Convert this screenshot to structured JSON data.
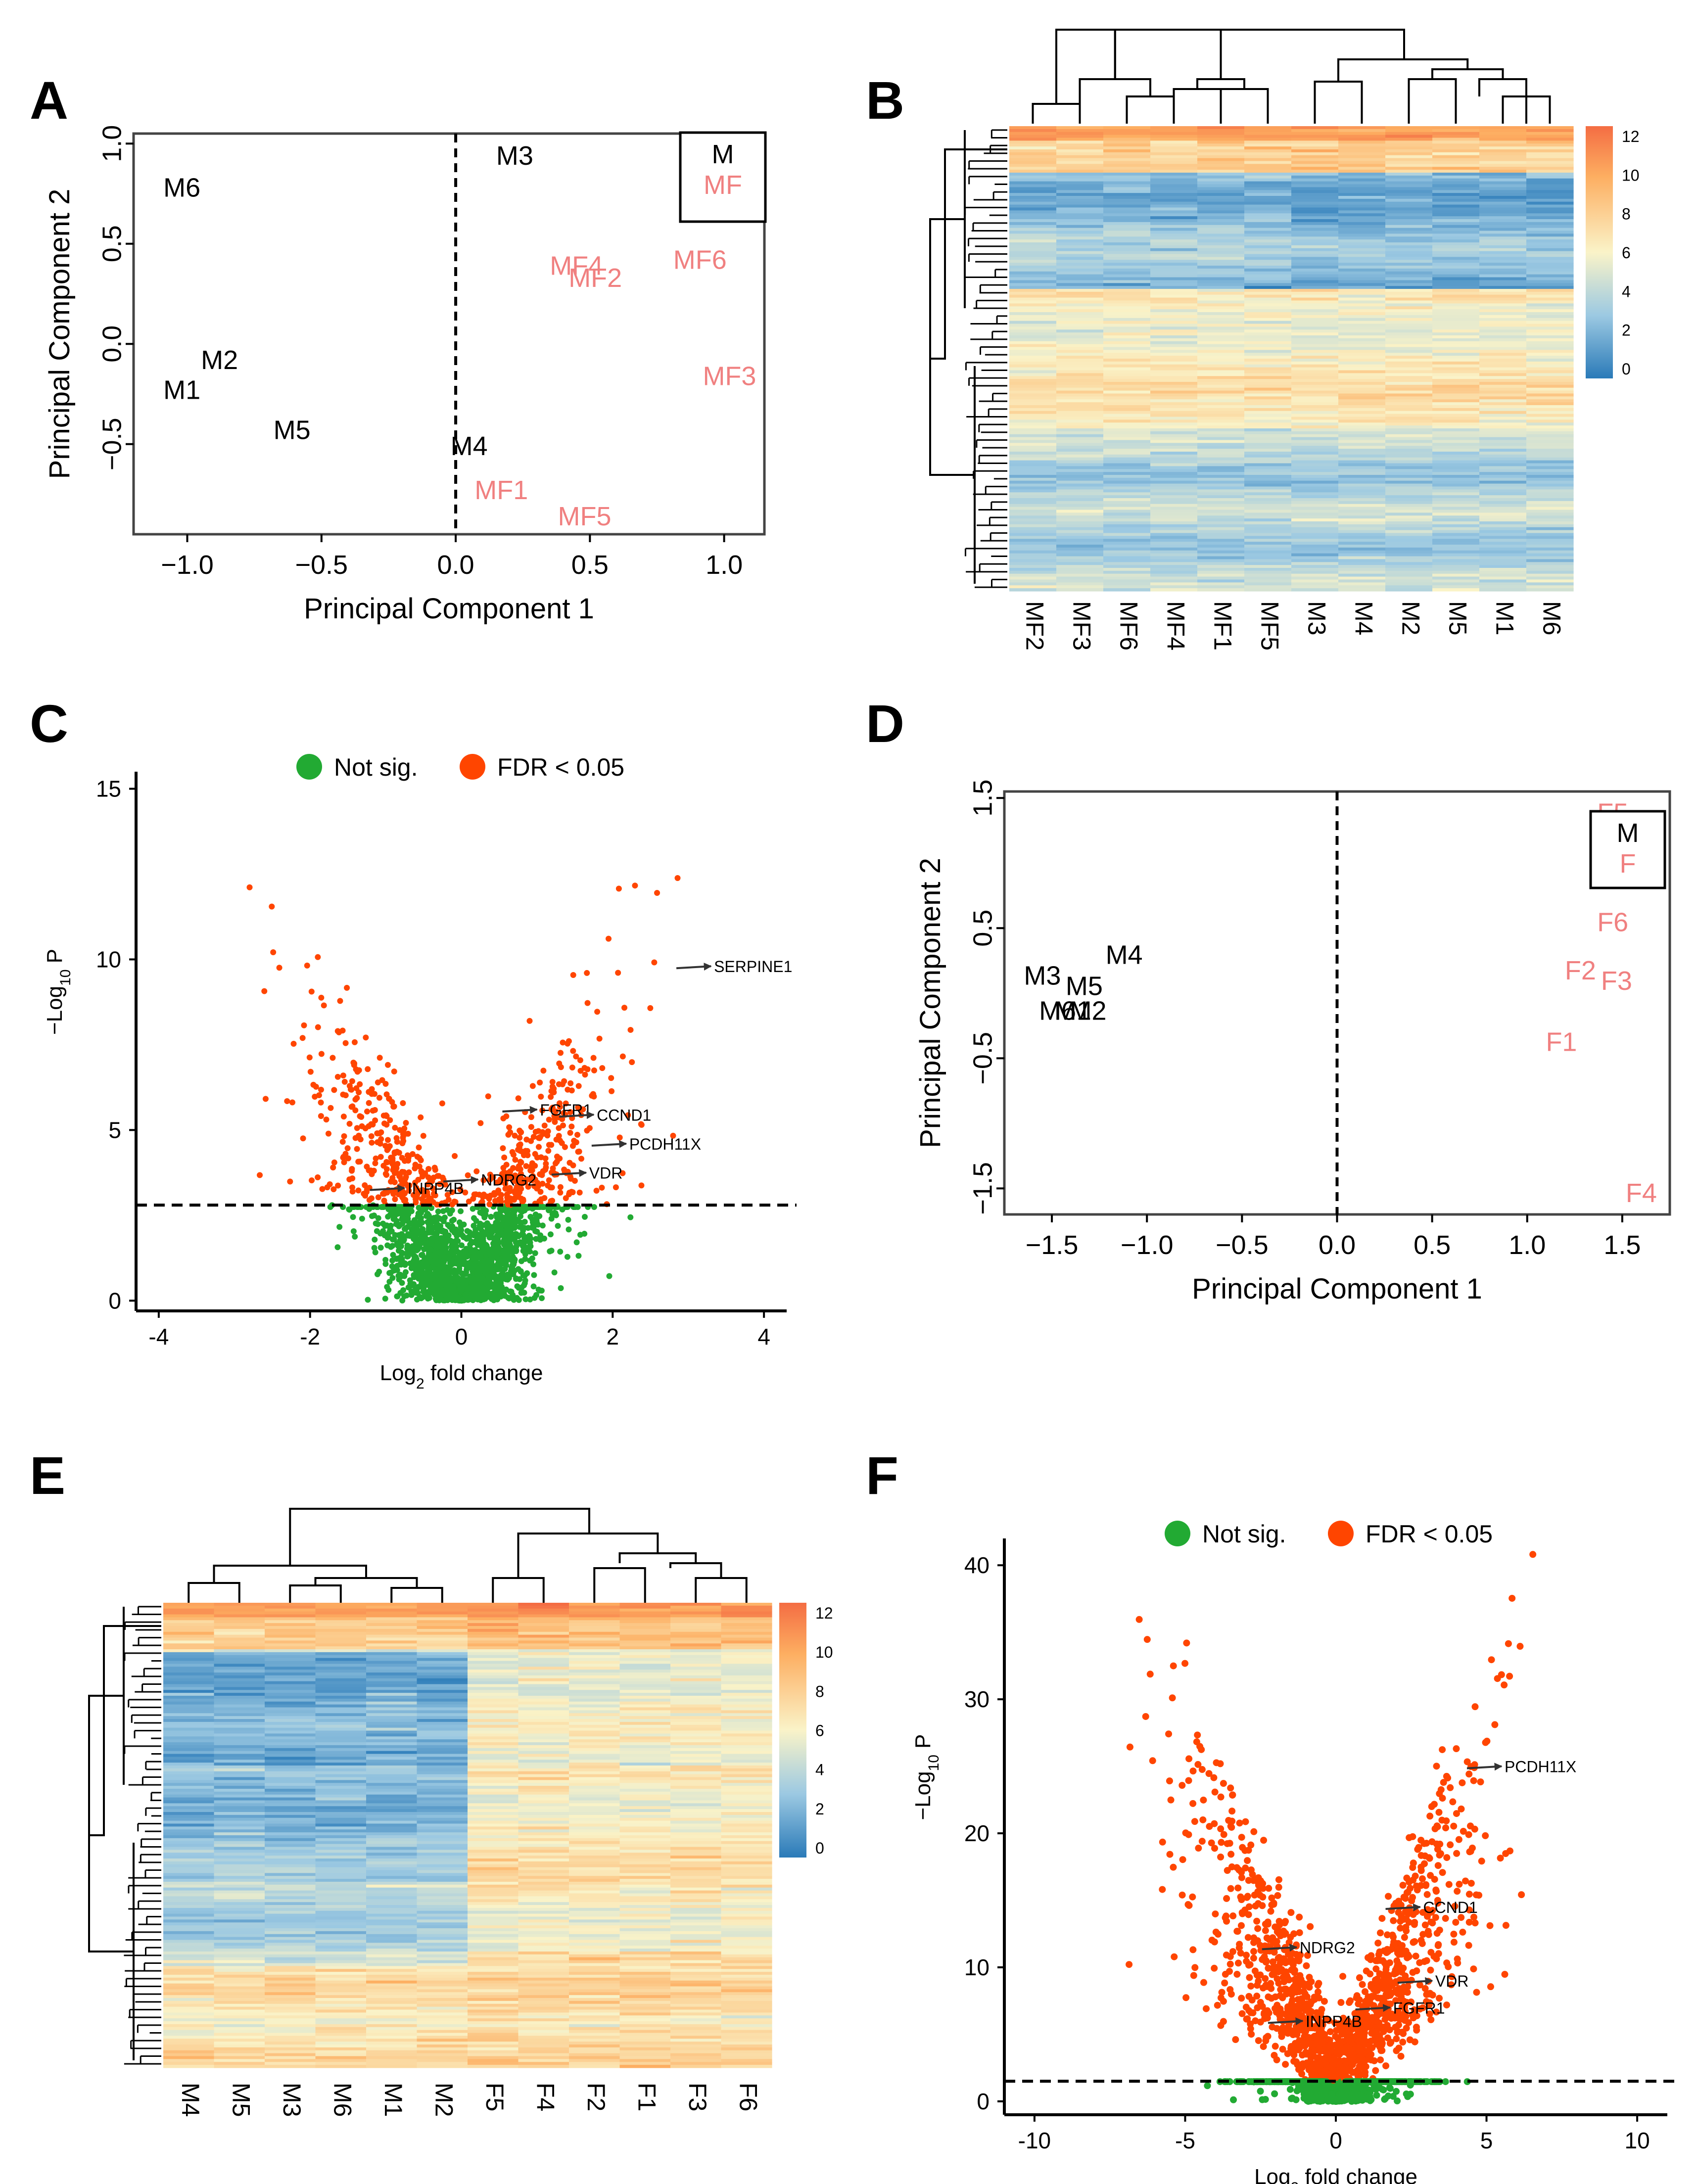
{
  "colors": {
    "male": "#000000",
    "female": "#F08080",
    "sig": "#FF4500",
    "notsig": "#22AA33",
    "hm_low": "#2A7AB8",
    "hm_mid": "#FAF3C8",
    "hm_high": "#F46D43"
  },
  "panels": {
    "A": "A",
    "B": "B",
    "C": "C",
    "D": "D",
    "E": "E",
    "F": "F"
  },
  "chart_data": [
    {
      "panel": "A",
      "type": "scatter",
      "xlabel": "Principal Component 1",
      "ylabel": "Principal Component 2",
      "xlim": [
        -1.2,
        1.15
      ],
      "ylim": [
        -0.95,
        1.05
      ],
      "xticks": [
        "−1.0",
        "−0.5",
        "0.0",
        "0.5",
        "1.0"
      ],
      "yticks": [
        "1.0",
        "0.5",
        "0.0",
        "−0.5"
      ],
      "legend": [
        "M",
        "MF"
      ],
      "points": [
        {
          "label": "M6",
          "x": -1.02,
          "y": 0.77,
          "group": "M"
        },
        {
          "label": "M3",
          "x": 0.22,
          "y": 0.93,
          "group": "M"
        },
        {
          "label": "M2",
          "x": -0.88,
          "y": -0.09,
          "group": "M"
        },
        {
          "label": "M1",
          "x": -1.02,
          "y": -0.24,
          "group": "M"
        },
        {
          "label": "M5",
          "x": -0.61,
          "y": -0.44,
          "group": "M"
        },
        {
          "label": "M4",
          "x": 0.05,
          "y": -0.52,
          "group": "M"
        },
        {
          "label": "MF4",
          "x": 0.45,
          "y": 0.38,
          "group": "MF"
        },
        {
          "label": "MF2",
          "x": 0.52,
          "y": 0.32,
          "group": "MF"
        },
        {
          "label": "MF6",
          "x": 0.91,
          "y": 0.41,
          "group": "MF"
        },
        {
          "label": "MF3",
          "x": 1.02,
          "y": -0.17,
          "group": "MF"
        },
        {
          "label": "MF1",
          "x": 0.17,
          "y": -0.74,
          "group": "MF"
        },
        {
          "label": "MF5",
          "x": 0.48,
          "y": -0.87,
          "group": "MF"
        }
      ]
    },
    {
      "panel": "B",
      "type": "heatmap",
      "columns": [
        "MF2",
        "MF3",
        "MF6",
        "MF4",
        "MF1",
        "MF5",
        "M3",
        "M4",
        "M2",
        "M5",
        "M1",
        "M6"
      ],
      "colorbar_ticks": [
        "12",
        "10",
        "8",
        "6",
        "4",
        "2",
        "0"
      ],
      "colorbar_range": [
        0,
        12
      ]
    },
    {
      "panel": "C",
      "type": "scatter",
      "xlabel": "Log2 fold change",
      "ylabel": "−Log10 P",
      "xlim": [
        -4.3,
        4.3
      ],
      "ylim": [
        -0.3,
        15.5
      ],
      "xticks": [
        "-4",
        "-2",
        "0",
        "2",
        "4"
      ],
      "yticks": [
        "0",
        "5",
        "10",
        "15"
      ],
      "threshold_y": 2.8,
      "legend": [
        "Not sig.",
        "FDR < 0.05"
      ],
      "genes": [
        {
          "label": "SERPINE1",
          "x": 3.3,
          "y": 9.8
        },
        {
          "label": "FGFR1",
          "x": 1.0,
          "y": 5.6
        },
        {
          "label": "CCND1",
          "x": 1.75,
          "y": 5.45
        },
        {
          "label": "PCDH11X",
          "x": 2.18,
          "y": 4.6
        },
        {
          "label": "VDR",
          "x": 1.65,
          "y": 3.75
        },
        {
          "label": "NDRG2",
          "x": 0.22,
          "y": 3.55
        },
        {
          "label": "INPP4B",
          "x": -0.75,
          "y": 3.3
        }
      ]
    },
    {
      "panel": "D",
      "type": "scatter",
      "xlabel": "Principal Component 1",
      "ylabel": "Principal Component 2",
      "xlim": [
        -1.75,
        1.75
      ],
      "ylim": [
        -1.7,
        1.55
      ],
      "xticks": [
        "−1.5",
        "−1.0",
        "−0.5",
        "0.0",
        "0.5",
        "1.0",
        "1.5"
      ],
      "yticks": [
        "1.5",
        "0.5",
        "−0.5",
        "−1.5"
      ],
      "legend": [
        "M",
        "F"
      ],
      "points": [
        {
          "label": "M3",
          "x": -1.55,
          "y": 0.12,
          "group": "M"
        },
        {
          "label": "M4",
          "x": -1.12,
          "y": 0.28,
          "group": "M"
        },
        {
          "label": "M5",
          "x": -1.33,
          "y": 0.04,
          "group": "M"
        },
        {
          "label": "M6",
          "x": -1.47,
          "y": -0.15,
          "group": "M"
        },
        {
          "label": "M1",
          "x": -1.39,
          "y": -0.15,
          "group": "M"
        },
        {
          "label": "M2",
          "x": -1.31,
          "y": -0.15,
          "group": "M"
        },
        {
          "label": "F5",
          "x": 1.45,
          "y": 1.37,
          "group": "F"
        },
        {
          "label": "F6",
          "x": 1.45,
          "y": 0.53,
          "group": "F"
        },
        {
          "label": "F2",
          "x": 1.28,
          "y": 0.16,
          "group": "F"
        },
        {
          "label": "F3",
          "x": 1.47,
          "y": 0.08,
          "group": "F"
        },
        {
          "label": "F1",
          "x": 1.18,
          "y": -0.39,
          "group": "F"
        },
        {
          "label": "F4",
          "x": 1.6,
          "y": -1.55,
          "group": "F"
        }
      ]
    },
    {
      "panel": "E",
      "type": "heatmap",
      "columns": [
        "M4",
        "M5",
        "M3",
        "M6",
        "M1",
        "M2",
        "F5",
        "F4",
        "F2",
        "F1",
        "F3",
        "F6"
      ],
      "colorbar_ticks": [
        "12",
        "10",
        "8",
        "6",
        "4",
        "2",
        "0"
      ],
      "colorbar_range": [
        0,
        12
      ]
    },
    {
      "panel": "F",
      "type": "scatter",
      "xlabel": "Log2 fold change",
      "ylabel": "−Log10 P",
      "xlim": [
        -11,
        11
      ],
      "ylim": [
        -1,
        42
      ],
      "xticks": [
        "-10",
        "-5",
        "0",
        "5",
        "10"
      ],
      "yticks": [
        "0",
        "10",
        "20",
        "30",
        "40"
      ],
      "threshold_y": 1.5,
      "legend": [
        "Not sig.",
        "FDR < 0.05"
      ],
      "genes": [
        {
          "label": "PCDH11X",
          "x": 5.5,
          "y": 25
        },
        {
          "label": "CCND1",
          "x": 2.8,
          "y": 14.5
        },
        {
          "label": "NDRG2",
          "x": -1.3,
          "y": 11.5
        },
        {
          "label": "VDR",
          "x": 3.2,
          "y": 9
        },
        {
          "label": "FGFR1",
          "x": 1.8,
          "y": 7
        },
        {
          "label": "INPP4B",
          "x": -1.1,
          "y": 6
        }
      ]
    }
  ]
}
